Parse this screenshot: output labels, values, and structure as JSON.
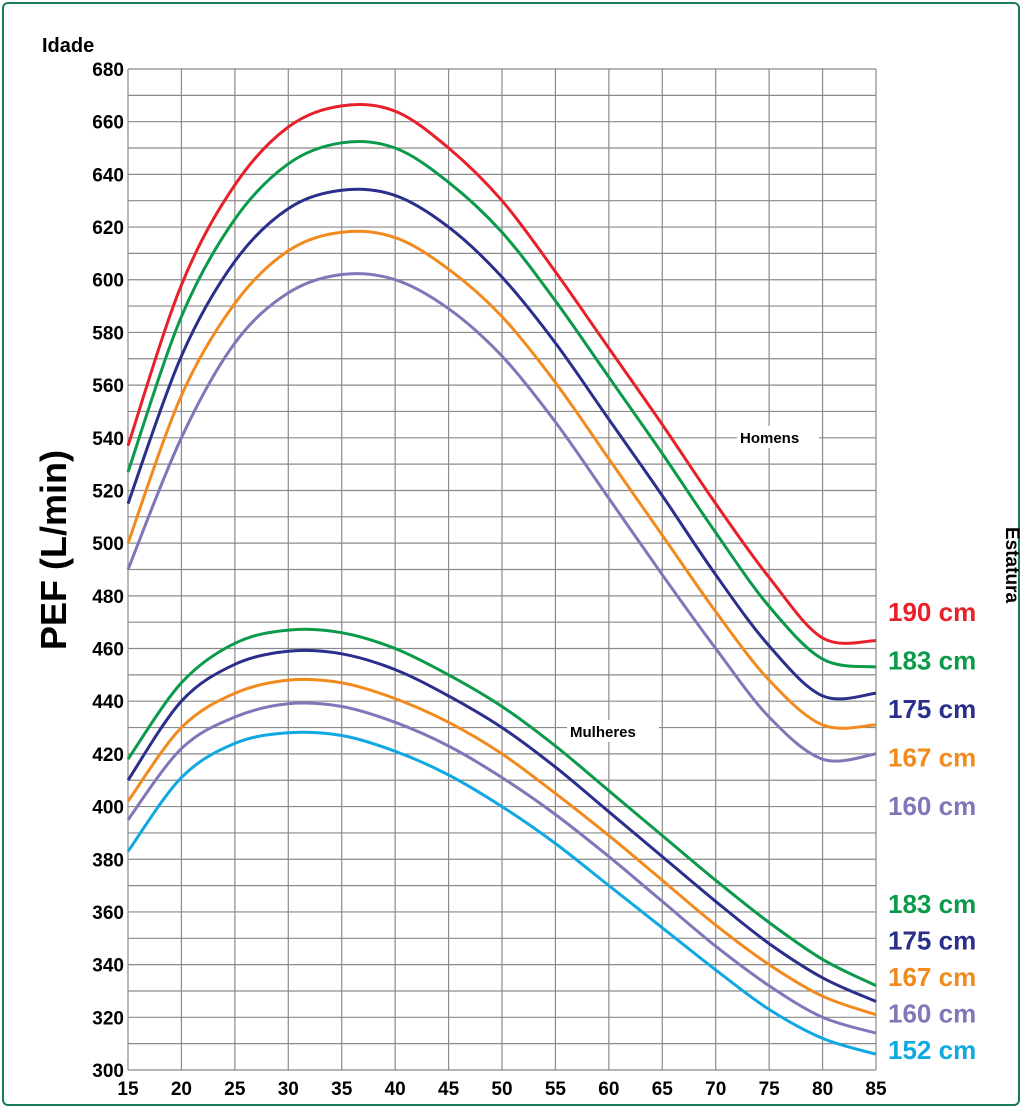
{
  "chart_data": {
    "type": "line",
    "x_axis_title": "Idade",
    "y_axis_title": "PEF (L/min)",
    "right_title": "Estatura",
    "xlim": [
      15,
      85
    ],
    "ylim": [
      300,
      680
    ],
    "x_ticks": [
      15,
      20,
      25,
      30,
      35,
      40,
      45,
      50,
      55,
      60,
      65,
      70,
      75,
      80,
      85
    ],
    "y_ticks": [
      300,
      320,
      340,
      360,
      380,
      400,
      420,
      440,
      460,
      480,
      500,
      520,
      540,
      560,
      580,
      600,
      620,
      640,
      660,
      680
    ],
    "grid": true,
    "x": [
      15,
      20,
      25,
      30,
      35,
      40,
      45,
      50,
      55,
      60,
      65,
      70,
      75,
      80,
      85
    ],
    "groups": [
      {
        "label": "Homens",
        "series": [
          {
            "name": "190 cm",
            "color": "#e8202a",
            "values": [
              537,
              598,
              636,
              658,
              666,
              664,
              650,
              630,
              603,
              574,
              545,
              515,
              487,
              464,
              463
            ]
          },
          {
            "name": "183 cm",
            "color": "#0a9a4a",
            "values": [
              527,
              586,
              623,
              644,
              652,
              650,
              637,
              618,
              592,
              563,
              534,
              504,
              476,
              456,
              453
            ]
          },
          {
            "name": "175 cm",
            "color": "#2b2f8c",
            "values": [
              515,
              571,
              607,
              627,
              634,
              632,
              620,
              601,
              576,
              547,
              518,
              488,
              461,
              442,
              443
            ]
          },
          {
            "name": "167 cm",
            "color": "#f28a1e",
            "values": [
              500,
              556,
              591,
              611,
              618,
              616,
              604,
              586,
              561,
              532,
              503,
              474,
              448,
              431,
              431
            ]
          },
          {
            "name": "160 cm",
            "color": "#7f77b8",
            "values": [
              490,
              540,
              576,
              595,
              602,
              600,
              589,
              571,
              546,
              517,
              488,
              460,
              434,
              418,
              420
            ]
          }
        ]
      },
      {
        "label": "Mulheres",
        "series": [
          {
            "name": "183 cm",
            "color": "#0a9a4a",
            "values": [
              418,
              447,
              462,
              467,
              466,
              460,
              450,
              438,
              423,
              406,
              389,
              372,
              356,
              342,
              332
            ]
          },
          {
            "name": "175 cm",
            "color": "#2b2f8c",
            "values": [
              410,
              440,
              454,
              459,
              458,
              452,
              442,
              430,
              415,
              398,
              381,
              364,
              348,
              335,
              326
            ]
          },
          {
            "name": "167 cm",
            "color": "#f28a1e",
            "values": [
              402,
              430,
              443,
              448,
              447,
              441,
              432,
              420,
              405,
              389,
              372,
              355,
              340,
              328,
              321
            ]
          },
          {
            "name": "160 cm",
            "color": "#7f77b8",
            "values": [
              395,
              422,
              434,
              439,
              438,
              432,
              423,
              411,
              397,
              381,
              364,
              347,
              332,
              320,
              314
            ]
          },
          {
            "name": "152 cm",
            "color": "#10a8e2",
            "values": [
              383,
              411,
              424,
              428,
              427,
              421,
              412,
              400,
              386,
              370,
              354,
              338,
              323,
              312,
              306
            ]
          }
        ]
      }
    ]
  }
}
